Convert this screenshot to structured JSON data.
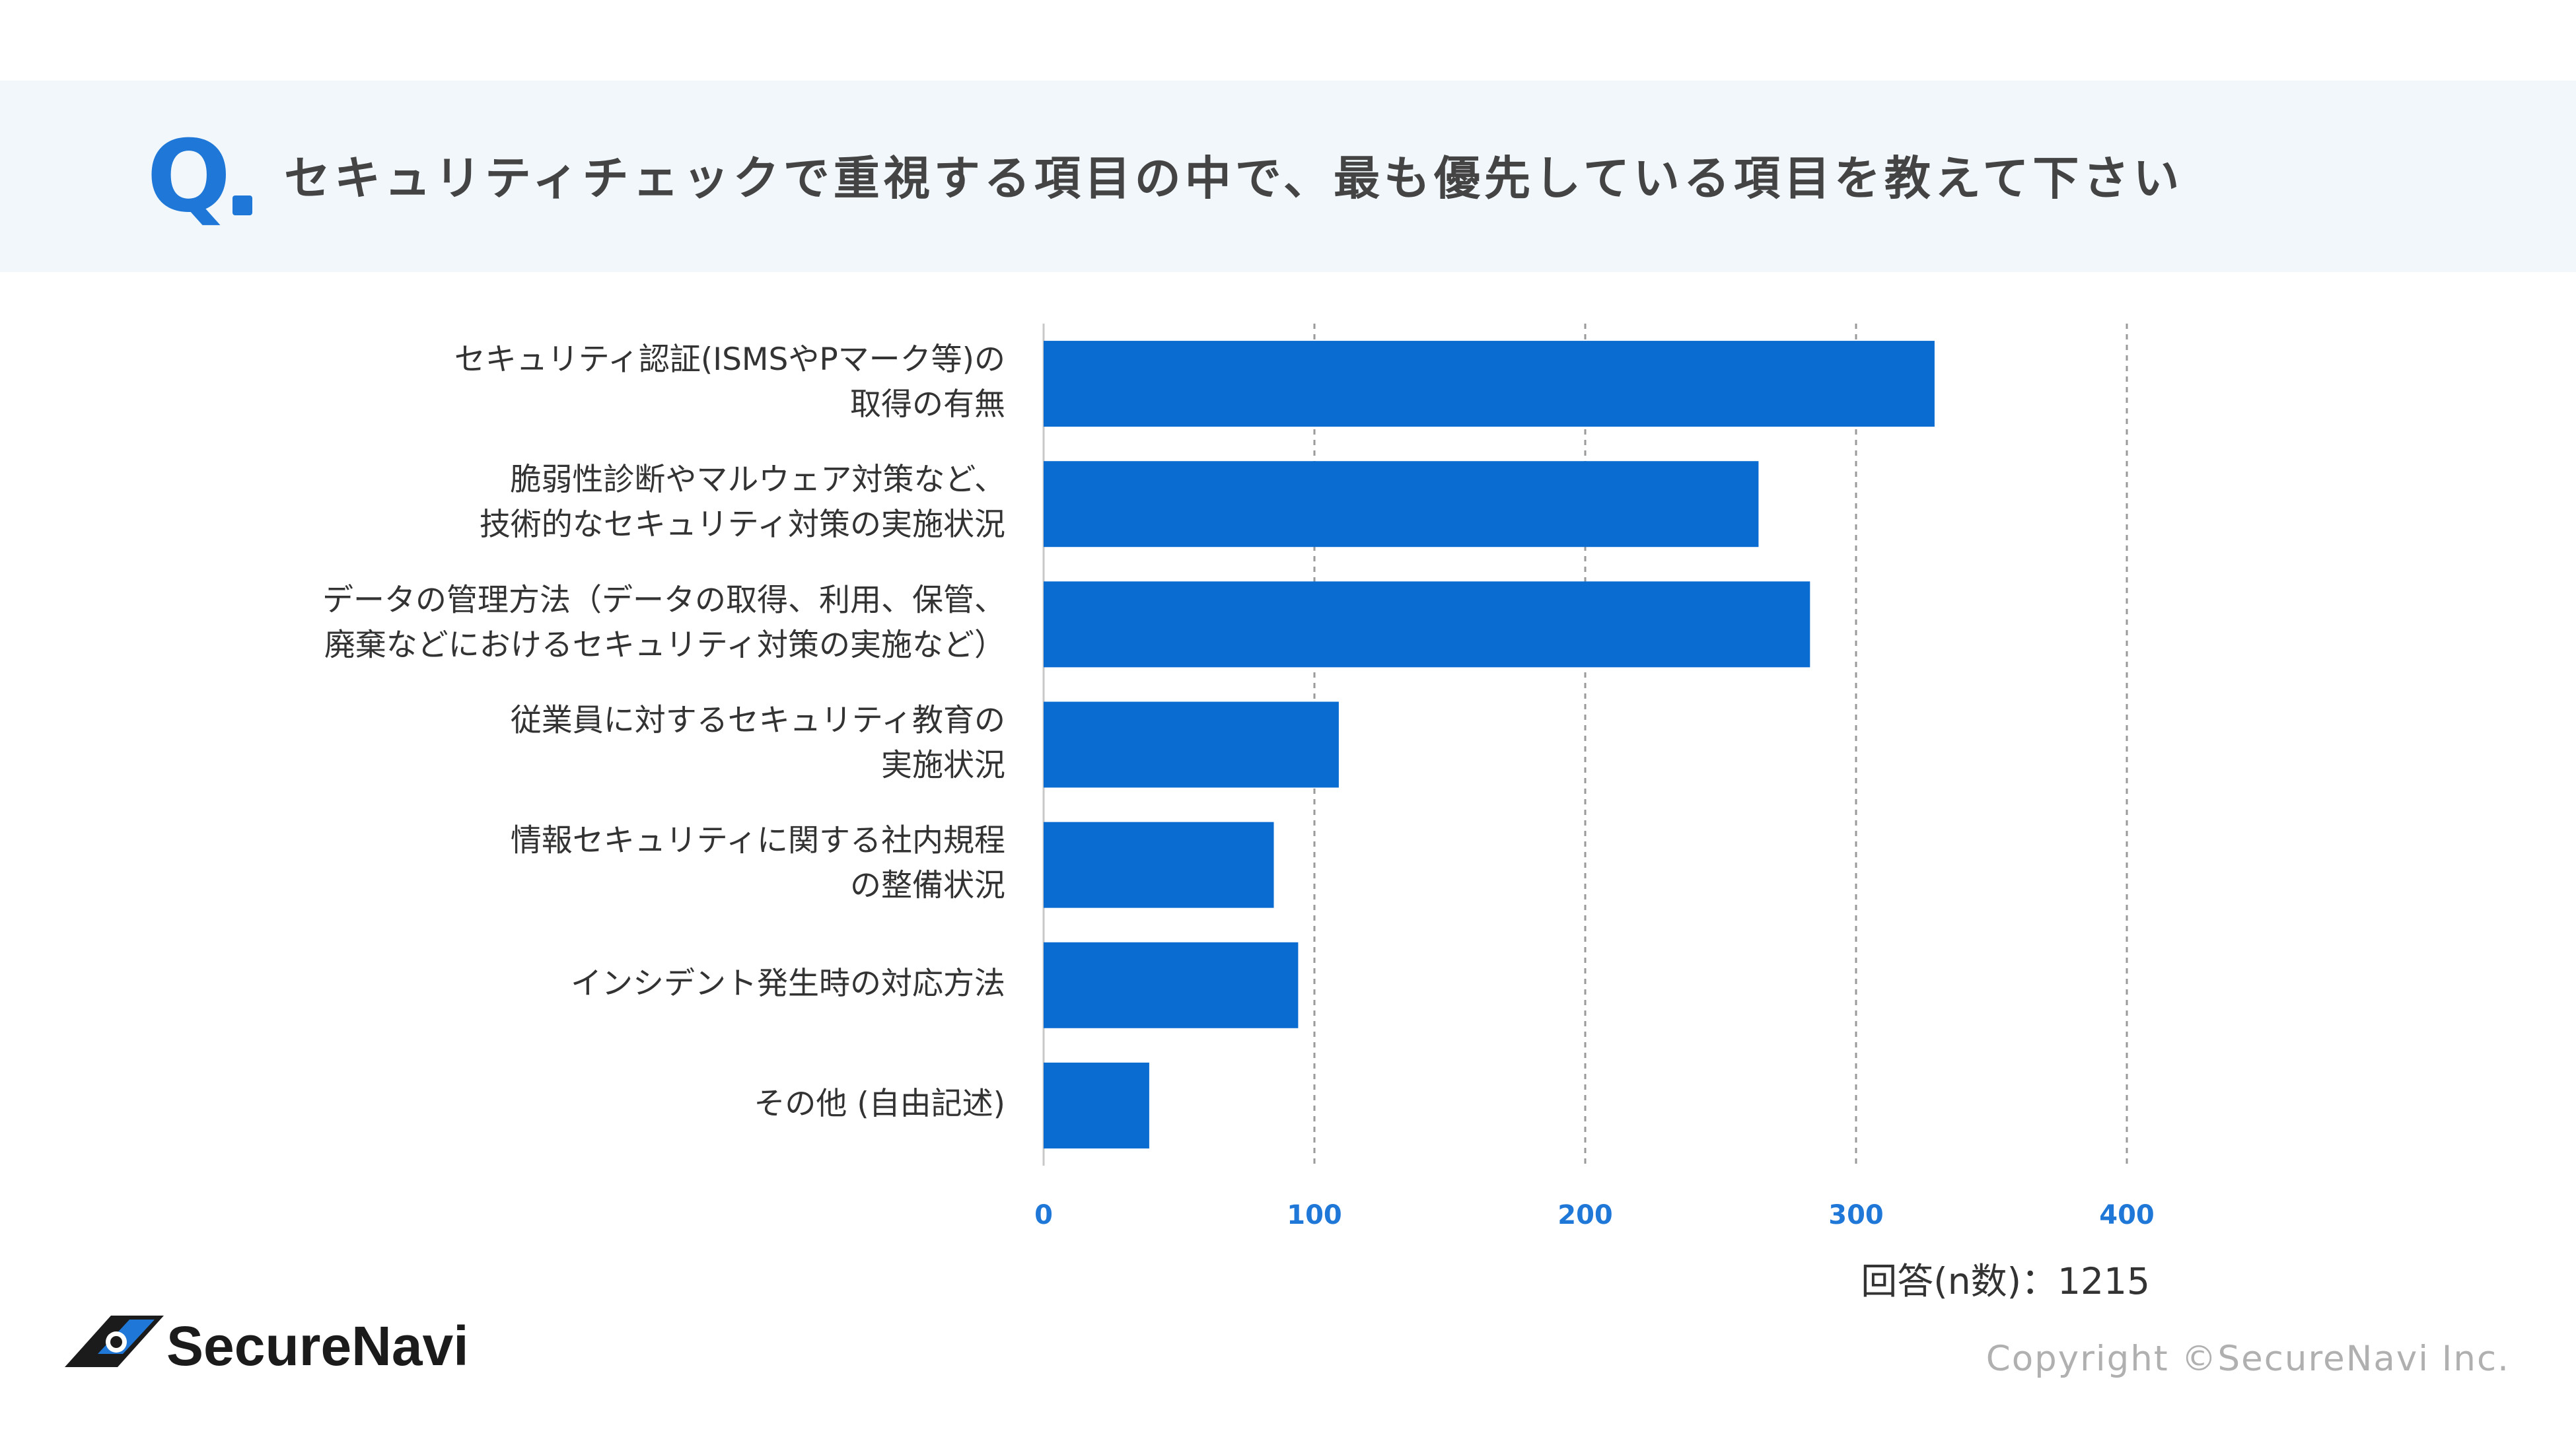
{
  "header": {
    "q_label": "Q",
    "question": "セキュリティチェックで重視する項目の中で、最も優先している項目を教えて下さい"
  },
  "chart_data": {
    "type": "bar",
    "orientation": "horizontal",
    "categories": [
      [
        "セキュリティ認証(ISMSやPマーク等)の",
        "取得の有無"
      ],
      [
        "脆弱性診断やマルウェア対策など、",
        "技術的なセキュリティ対策の実施状況"
      ],
      [
        "データの管理方法（データの取得、利用、保管、",
        "廃棄などにおけるセキュリティ対策の実施など）"
      ],
      [
        "従業員に対するセキュリティ教育の",
        "実施状況"
      ],
      [
        "情報セキュリティに関する社内規程",
        "の整備状況"
      ],
      [
        "インシデント発生時の対応方法"
      ],
      [
        "その他 (自由記述)"
      ]
    ],
    "values": [
      329,
      264,
      283,
      109,
      85,
      94,
      39
    ],
    "xlim": [
      0,
      400
    ],
    "xticks": [
      "0",
      "100",
      "200",
      "300",
      "400"
    ],
    "grid": "vertical-dashed",
    "bar_color": "#0a6bd1",
    "tick_color": "#1f78d8",
    "n_label": "回答(n数)：1215"
  },
  "footer": {
    "logo_text": "SecureNavi",
    "copyright": "Copyright ©SecureNavi Inc."
  }
}
